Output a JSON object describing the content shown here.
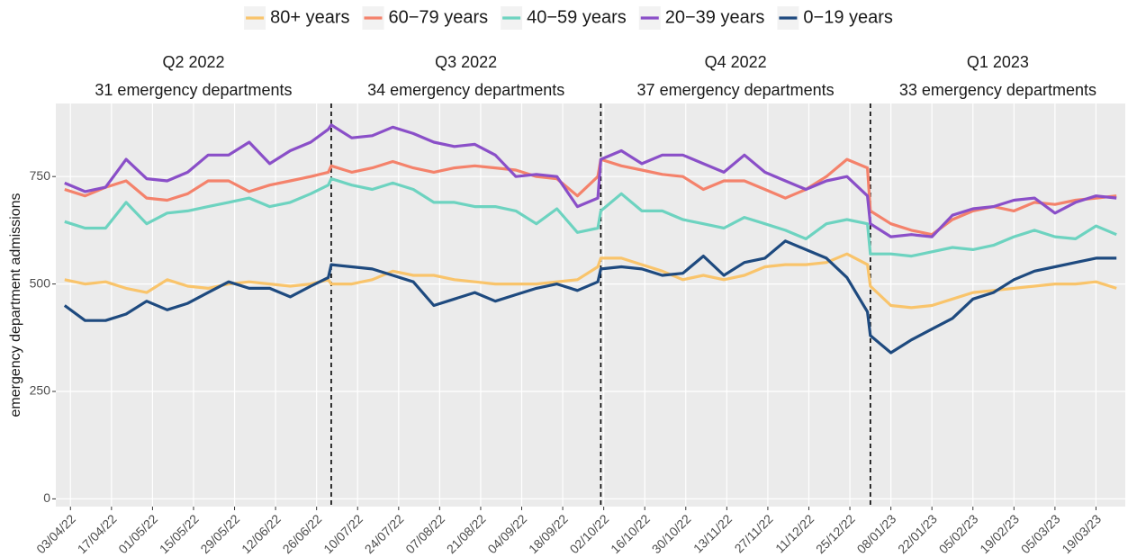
{
  "chart_data": {
    "type": "line",
    "ylabel": "emergency department admissions",
    "x": [
      "2022-04-01",
      "2022-04-08",
      "2022-04-15",
      "2022-04-22",
      "2022-04-29",
      "2022-05-06",
      "2022-05-13",
      "2022-05-20",
      "2022-05-27",
      "2022-06-03",
      "2022-06-10",
      "2022-06-17",
      "2022-06-24",
      "2022-06-30",
      "2022-07-01",
      "2022-07-08",
      "2022-07-15",
      "2022-07-22",
      "2022-07-29",
      "2022-08-05",
      "2022-08-12",
      "2022-08-19",
      "2022-08-26",
      "2022-09-02",
      "2022-09-09",
      "2022-09-16",
      "2022-09-23",
      "2022-09-30",
      "2022-10-01",
      "2022-10-08",
      "2022-10-15",
      "2022-10-22",
      "2022-10-29",
      "2022-11-05",
      "2022-11-12",
      "2022-11-19",
      "2022-11-26",
      "2022-12-03",
      "2022-12-10",
      "2022-12-17",
      "2022-12-24",
      "2022-12-31",
      "2023-01-01",
      "2023-01-08",
      "2023-01-15",
      "2023-01-22",
      "2023-01-29",
      "2023-02-05",
      "2023-02-12",
      "2023-02-19",
      "2023-02-26",
      "2023-03-05",
      "2023-03-12",
      "2023-03-19",
      "2023-03-26"
    ],
    "series": [
      {
        "name": "80+ years",
        "color": "#f9c46b",
        "values": [
          510,
          500,
          505,
          490,
          480,
          510,
          495,
          490,
          500,
          505,
          500,
          495,
          500,
          510,
          500,
          500,
          510,
          530,
          520,
          520,
          510,
          505,
          500,
          500,
          500,
          505,
          510,
          540,
          560,
          560,
          545,
          530,
          510,
          520,
          510,
          520,
          540,
          545,
          545,
          550,
          570,
          545,
          495,
          450,
          445,
          450,
          465,
          480,
          485,
          490,
          495,
          500,
          500,
          505,
          490
        ]
      },
      {
        "name": "60−79 years",
        "color": "#f4826b",
        "values": [
          720,
          705,
          725,
          740,
          700,
          695,
          710,
          740,
          740,
          715,
          730,
          740,
          750,
          760,
          775,
          760,
          770,
          785,
          770,
          760,
          770,
          775,
          770,
          765,
          750,
          745,
          705,
          750,
          790,
          775,
          765,
          755,
          750,
          720,
          740,
          740,
          720,
          700,
          720,
          750,
          790,
          770,
          670,
          640,
          625,
          615,
          650,
          670,
          680,
          670,
          690,
          685,
          695,
          700,
          705
        ]
      },
      {
        "name": "40−59 years",
        "color": "#6dd3c0",
        "values": [
          645,
          630,
          630,
          690,
          640,
          665,
          670,
          680,
          690,
          700,
          680,
          690,
          710,
          730,
          745,
          730,
          720,
          735,
          720,
          690,
          690,
          680,
          680,
          670,
          640,
          675,
          620,
          630,
          670,
          710,
          670,
          670,
          650,
          640,
          630,
          655,
          640,
          625,
          605,
          640,
          650,
          640,
          570,
          570,
          565,
          575,
          585,
          580,
          590,
          610,
          625,
          610,
          605,
          635,
          615
        ]
      },
      {
        "name": "20−39 years",
        "color": "#8a4fc8",
        "values": [
          735,
          715,
          725,
          790,
          745,
          740,
          760,
          800,
          800,
          830,
          780,
          810,
          830,
          860,
          870,
          840,
          845,
          865,
          850,
          830,
          820,
          825,
          800,
          750,
          755,
          750,
          680,
          700,
          790,
          810,
          780,
          800,
          800,
          780,
          760,
          800,
          760,
          740,
          720,
          740,
          750,
          705,
          640,
          610,
          615,
          610,
          660,
          675,
          680,
          695,
          700,
          665,
          690,
          705,
          700
        ]
      },
      {
        "name": "0−19 years",
        "color": "#1e4a7f",
        "values": [
          450,
          415,
          415,
          430,
          460,
          440,
          455,
          480,
          505,
          490,
          490,
          470,
          495,
          515,
          545,
          540,
          535,
          520,
          505,
          450,
          465,
          480,
          460,
          475,
          490,
          500,
          485,
          505,
          535,
          540,
          535,
          520,
          525,
          565,
          520,
          550,
          560,
          600,
          580,
          560,
          515,
          435,
          380,
          340,
          370,
          395,
          420,
          465,
          480,
          510,
          530,
          540,
          550,
          560,
          560
        ]
      }
    ],
    "facets": [
      {
        "title": "Q2 2022",
        "subtitle": "31 emergency departments"
      },
      {
        "title": "Q3 2022",
        "subtitle": "34 emergency departments"
      },
      {
        "title": "Q4 2022",
        "subtitle": "37 emergency departments"
      },
      {
        "title": "Q1 2023",
        "subtitle": "33 emergency departments"
      }
    ],
    "vlines": [
      "2022-07-01",
      "2022-10-01",
      "2023-01-01"
    ],
    "xlim": [
      "2022-03-29",
      "2023-03-29"
    ],
    "xticks": [
      {
        "value": "2022-04-03",
        "label": "03/04/22"
      },
      {
        "value": "2022-04-17",
        "label": "17/04/22"
      },
      {
        "value": "2022-05-01",
        "label": "01/05/22"
      },
      {
        "value": "2022-05-15",
        "label": "15/05/22"
      },
      {
        "value": "2022-05-29",
        "label": "29/05/22"
      },
      {
        "value": "2022-06-12",
        "label": "12/06/22"
      },
      {
        "value": "2022-06-26",
        "label": "26/06/22"
      },
      {
        "value": "2022-07-10",
        "label": "10/07/22"
      },
      {
        "value": "2022-07-24",
        "label": "24/07/22"
      },
      {
        "value": "2022-08-07",
        "label": "07/08/22"
      },
      {
        "value": "2022-08-21",
        "label": "21/08/22"
      },
      {
        "value": "2022-09-04",
        "label": "04/09/22"
      },
      {
        "value": "2022-09-18",
        "label": "18/09/22"
      },
      {
        "value": "2022-10-02",
        "label": "02/10/22"
      },
      {
        "value": "2022-10-16",
        "label": "16/10/22"
      },
      {
        "value": "2022-10-30",
        "label": "30/10/22"
      },
      {
        "value": "2022-11-13",
        "label": "13/11/22"
      },
      {
        "value": "2022-11-27",
        "label": "27/11/22"
      },
      {
        "value": "2022-12-11",
        "label": "11/12/22"
      },
      {
        "value": "2022-12-25",
        "label": "25/12/22"
      },
      {
        "value": "2023-01-08",
        "label": "08/01/23"
      },
      {
        "value": "2023-01-22",
        "label": "22/01/23"
      },
      {
        "value": "2023-02-05",
        "label": "05/02/23"
      },
      {
        "value": "2023-02-19",
        "label": "19/02/23"
      },
      {
        "value": "2023-03-05",
        "label": "05/03/23"
      },
      {
        "value": "2023-03-19",
        "label": "19/03/23"
      }
    ],
    "ylim": [
      -18,
      920
    ],
    "yticks": [
      0,
      250,
      500,
      750
    ],
    "grid": true,
    "legend": "top"
  }
}
